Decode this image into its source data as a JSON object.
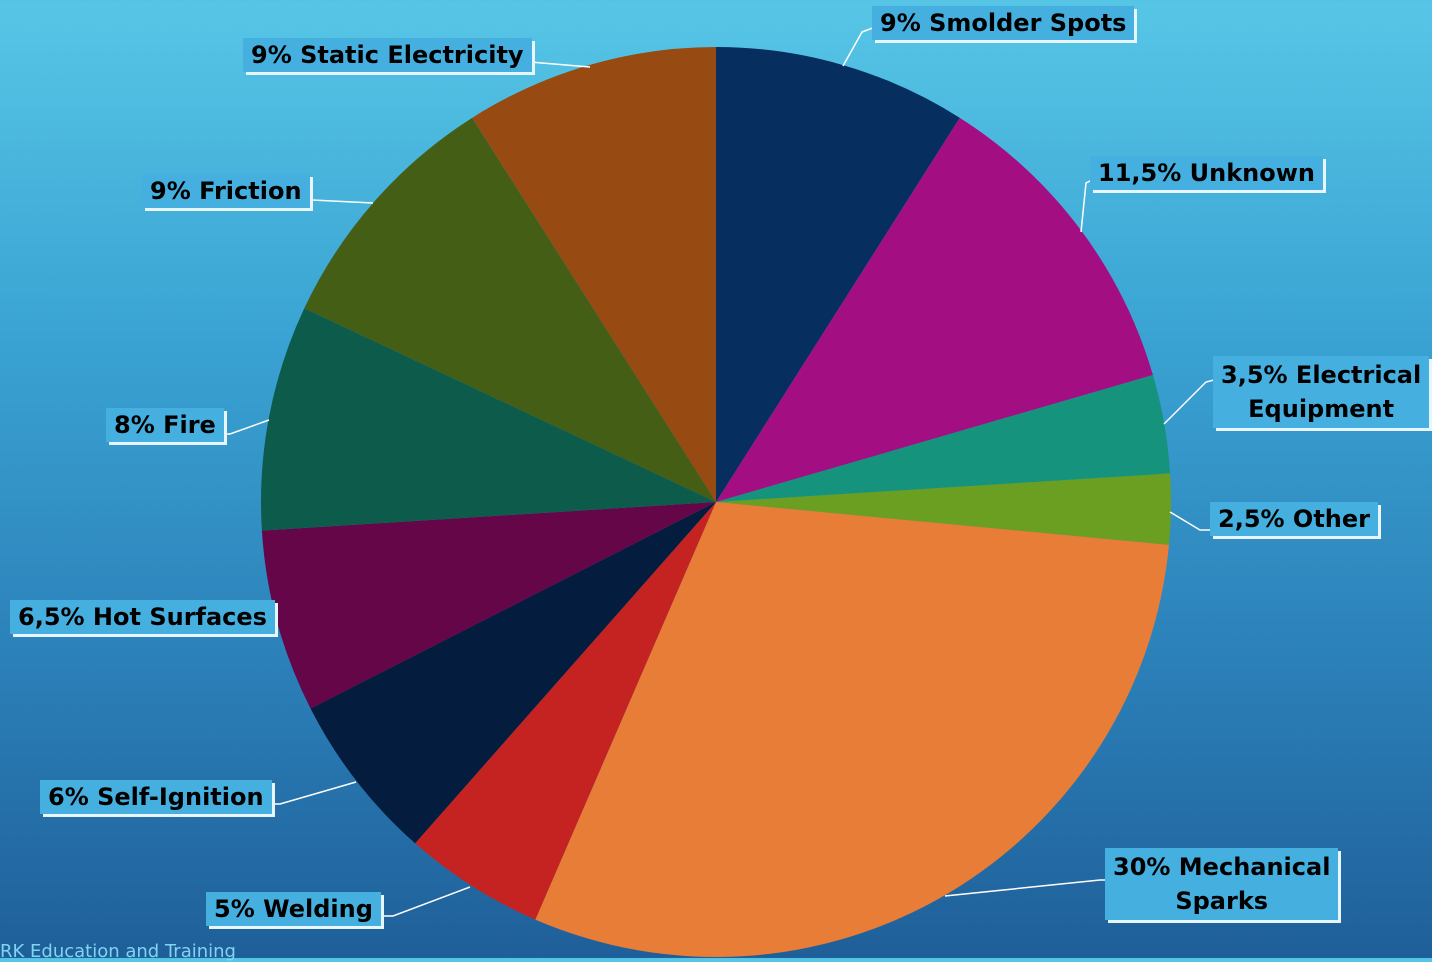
{
  "chart_data": {
    "type": "pie",
    "slices": [
      {
        "label": "9% Smolder Spots",
        "value": 9,
        "color": "#062e5e"
      },
      {
        "label": "11,5% Unknown",
        "value": 11.5,
        "color": "#a30f83"
      },
      {
        "label": "3,5% Electrical Equipment",
        "value": 3.5,
        "color": "#16937c"
      },
      {
        "label": "2,5% Other",
        "value": 2.5,
        "color": "#6a9f21"
      },
      {
        "label": "30% Mechanical Sparks",
        "value": 30,
        "color": "#e87d37"
      },
      {
        "label": "5% Welding",
        "value": 5,
        "color": "#c52322"
      },
      {
        "label": "6% Self-Ignition",
        "value": 6,
        "color": "#041c3d"
      },
      {
        "label": "6,5% Hot Surfaces",
        "value": 6.5,
        "color": "#650649"
      },
      {
        "label": "8% Fire",
        "value": 8,
        "color": "#0d5c4b"
      },
      {
        "label": "9% Friction",
        "value": 9,
        "color": "#445f15"
      },
      {
        "label": "9% Static Electricity",
        "value": 9,
        "color": "#974a12"
      }
    ]
  },
  "labels": {
    "smolder": "9% Smolder Spots",
    "unknown": "11,5% Unknown",
    "electrical_l1": "3,5% Electrical",
    "electrical_l2": "Equipment",
    "other": "2,5% Other",
    "mechanical_l1": "30% Mechanical",
    "mechanical_l2": "Sparks",
    "welding": "5% Welding",
    "self_ignition": "6% Self-Ignition",
    "hot_surfaces": "6,5% Hot Surfaces",
    "fire": "8% Fire",
    "friction": "9% Friction",
    "static": "9% Static Electricity"
  },
  "footer": "RK Education and Training"
}
